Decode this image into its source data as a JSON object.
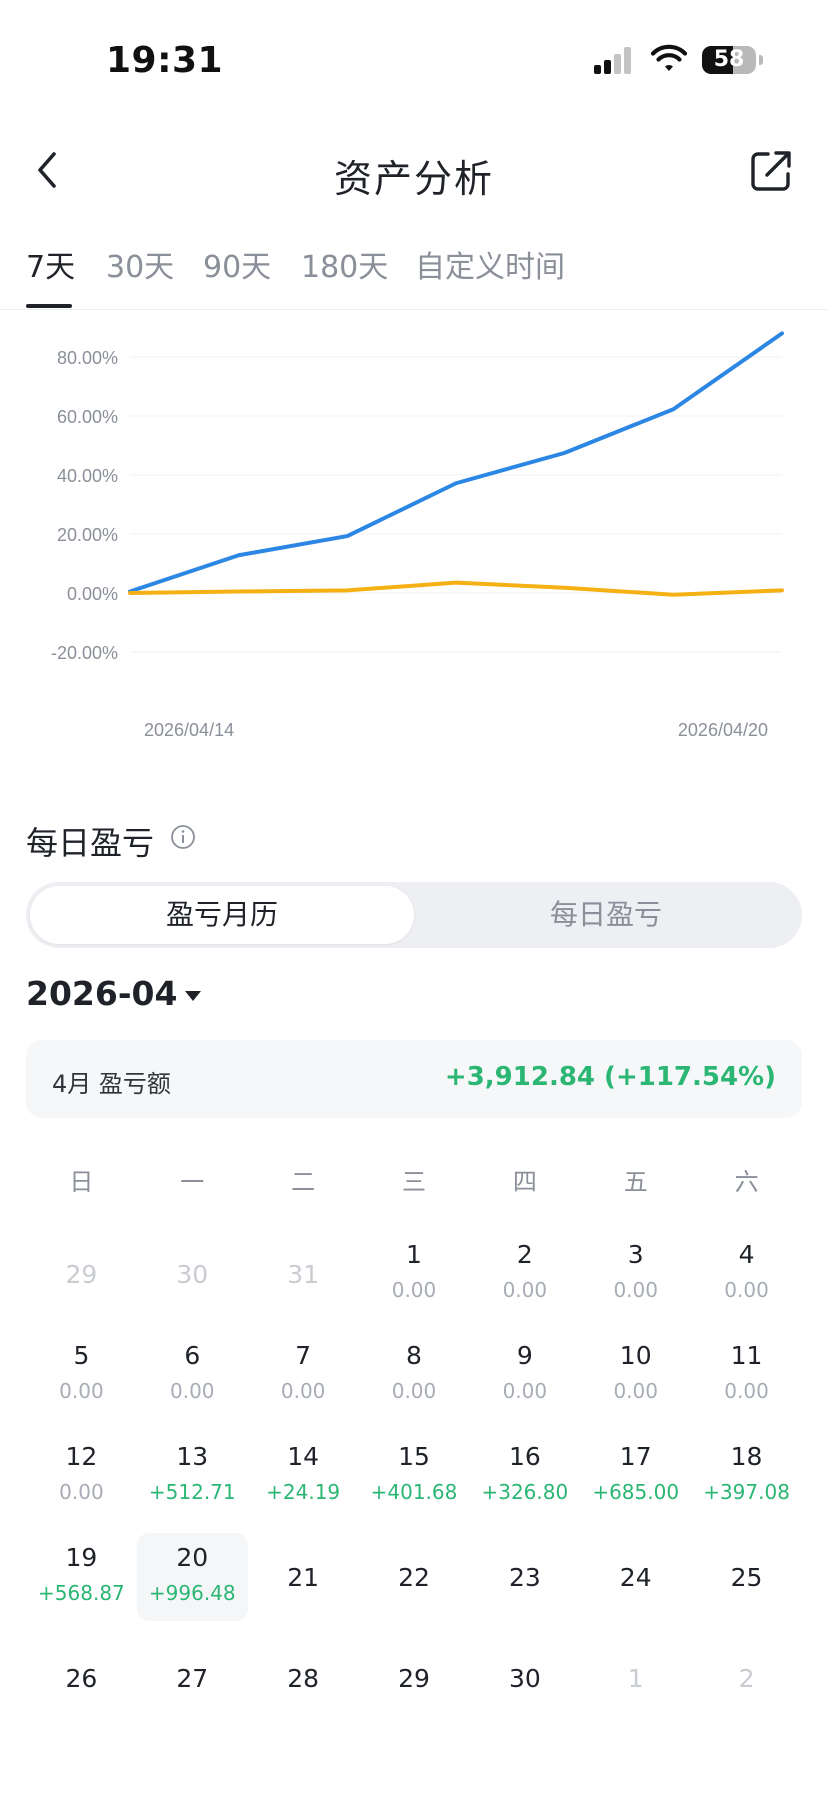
{
  "status_bar": {
    "time": "19:31",
    "battery": "58",
    "battery_level": 0.58
  },
  "header": {
    "title": "资产分析",
    "back_icon": "chevron-left-icon",
    "share_icon": "share-icon"
  },
  "tabs": [
    {
      "label": "7天",
      "active": true
    },
    {
      "label": "30天",
      "active": false
    },
    {
      "label": "90天",
      "active": false
    },
    {
      "label": "180天",
      "active": false
    },
    {
      "label": "自定义时间",
      "active": false
    }
  ],
  "chart_data": {
    "type": "line",
    "x": [
      "2026/04/14",
      "2026/04/15",
      "2026/04/16",
      "2026/04/17",
      "2026/04/18",
      "2026/04/19",
      "2026/04/20"
    ],
    "x_tick_labels": [
      "2026/04/14",
      "2026/04/20"
    ],
    "y_tick_labels": [
      "80.00%",
      "60.00%",
      "40.00%",
      "20.00%",
      "0.00%",
      "-20.00%"
    ],
    "ylim": [
      -20,
      80
    ],
    "grid": true,
    "series": [
      {
        "color": "#2b87e3",
        "values": [
          0.5,
          12.8,
          19.3,
          37.2,
          47.5,
          62.3,
          88.0
        ]
      },
      {
        "color": "#f5b014",
        "values": [
          0,
          0.5,
          0.9,
          3.5,
          1.8,
          -0.6,
          0.9
        ]
      }
    ]
  },
  "daily_pnl": {
    "title": "每日盈亏",
    "info_icon": "info-icon",
    "segments": [
      {
        "label": "盈亏月历",
        "active": true
      },
      {
        "label": "每日盈亏",
        "active": false
      }
    ],
    "month": "2026-04",
    "summary": {
      "label": "4月 盈亏额",
      "value": "+3,912.84 (+117.54%)"
    },
    "colors": {
      "positive": "#2bb673",
      "neutral": "#a8adb5"
    },
    "weekdays": [
      "日",
      "一",
      "二",
      "三",
      "四",
      "五",
      "六"
    ],
    "weeks": [
      [
        {
          "day": "29",
          "other": true
        },
        {
          "day": "30",
          "other": true
        },
        {
          "day": "31",
          "other": true
        },
        {
          "day": "1",
          "value": "0.00"
        },
        {
          "day": "2",
          "value": "0.00"
        },
        {
          "day": "3",
          "value": "0.00"
        },
        {
          "day": "4",
          "value": "0.00"
        }
      ],
      [
        {
          "day": "5",
          "value": "0.00"
        },
        {
          "day": "6",
          "value": "0.00"
        },
        {
          "day": "7",
          "value": "0.00"
        },
        {
          "day": "8",
          "value": "0.00"
        },
        {
          "day": "9",
          "value": "0.00"
        },
        {
          "day": "10",
          "value": "0.00"
        },
        {
          "day": "11",
          "value": "0.00"
        }
      ],
      [
        {
          "day": "12",
          "value": "0.00"
        },
        {
          "day": "13",
          "value": "+512.71"
        },
        {
          "day": "14",
          "value": "+24.19"
        },
        {
          "day": "15",
          "value": "+401.68"
        },
        {
          "day": "16",
          "value": "+326.80"
        },
        {
          "day": "17",
          "value": "+685.00"
        },
        {
          "day": "18",
          "value": "+397.08"
        }
      ],
      [
        {
          "day": "19",
          "value": "+568.87"
        },
        {
          "day": "20",
          "value": "+996.48",
          "selected": true
        },
        {
          "day": "21"
        },
        {
          "day": "22"
        },
        {
          "day": "23"
        },
        {
          "day": "24"
        },
        {
          "day": "25"
        }
      ],
      [
        {
          "day": "26"
        },
        {
          "day": "27"
        },
        {
          "day": "28"
        },
        {
          "day": "29"
        },
        {
          "day": "30"
        },
        {
          "day": "1",
          "other": true
        },
        {
          "day": "2",
          "other": true
        }
      ]
    ]
  }
}
